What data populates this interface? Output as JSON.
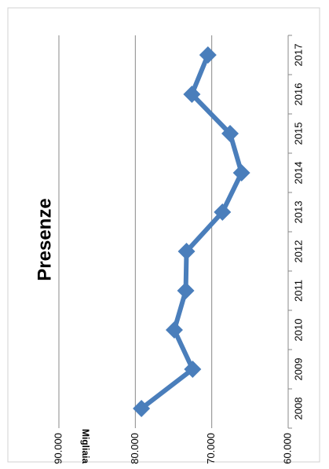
{
  "chart_data": {
    "type": "line",
    "title": "Presenze",
    "y_label": "Migliaia",
    "categories": [
      "2008",
      "2009",
      "2010",
      "2011",
      "2012",
      "2013",
      "2014",
      "2015",
      "2016",
      "2017"
    ],
    "values": [
      79200,
      72500,
      74900,
      73400,
      73300,
      68600,
      66100,
      67600,
      72600,
      70500
    ],
    "color": "#4a7ebb",
    "ylim": [
      60000,
      90000
    ],
    "yticks": [
      {
        "value": 90000,
        "label": "90.000"
      },
      {
        "value": 80000,
        "label": "80.000"
      },
      {
        "value": 70000,
        "label": "70.000"
      },
      {
        "value": 60000,
        "label": "60.000"
      }
    ],
    "grid": true
  }
}
